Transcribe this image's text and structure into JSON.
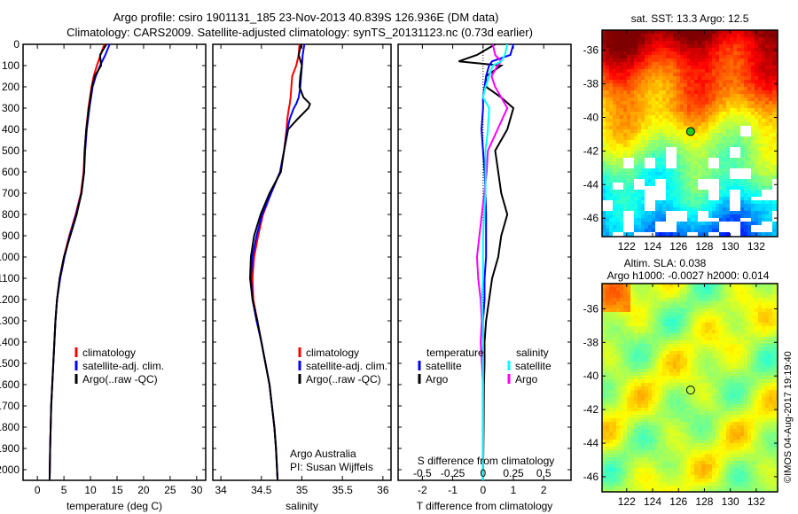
{
  "title_line1": "Argo profile: csiro 1901131_185 23-Nov-2013 40.839S 126.936E (DM data)",
  "title_line2": "Climatology: CARS2009. Satellite-adjusted climatology: synTS_20131123.nc (0.73d earlier)",
  "credit": "©IMOS 04-Aug-2017 19:19:40",
  "colors": {
    "climatology": "#ff0000",
    "satellite": "#0000ff",
    "argo": "#000000",
    "sal_satellite": "#00ffff",
    "sal_argo": "#ff00ff"
  },
  "chart_data": [
    {
      "type": "line",
      "name": "temperature",
      "xlabel": "temperature (deg C)",
      "xlim": [
        -2.7,
        31.7
      ],
      "ylim": [
        2050,
        0
      ],
      "xticks": [
        "0",
        "5",
        "10",
        "15",
        "20",
        "25",
        "30"
      ],
      "yticks": [
        "0",
        "100",
        "200",
        "300",
        "400",
        "500",
        "600",
        "700",
        "800",
        "900",
        "1000",
        "1100",
        "1200",
        "1300",
        "1400",
        "1500",
        "1600",
        "1700",
        "1800",
        "1900",
        "2000"
      ],
      "depth": [
        0,
        50,
        100,
        150,
        200,
        300,
        400,
        500,
        600,
        700,
        800,
        900,
        1000,
        1100,
        1200,
        1300,
        1400,
        1500,
        1600,
        1700,
        1800,
        1900,
        2050
      ],
      "legend": [
        "climatology",
        "satellite-adj. clim.",
        "Argo(..raw -QC)"
      ],
      "series": [
        {
          "name": "climatology",
          "values": [
            12.6,
            11.9,
            11.2,
            10.6,
            10.2,
            9.6,
            9.2,
            8.9,
            8.7,
            8.2,
            7.2,
            6.0,
            5.0,
            4.2,
            3.7,
            3.4,
            3.2,
            3.0,
            2.8,
            2.6,
            2.5,
            2.4,
            2.3
          ]
        },
        {
          "name": "satellite-adj. clim.",
          "values": [
            13.6,
            12.8,
            11.8,
            11.0,
            10.4,
            9.8,
            9.3,
            9.0,
            8.8,
            8.3,
            7.3,
            6.1,
            5.1,
            4.3,
            3.7,
            3.4,
            3.2,
            3.0,
            2.8,
            2.6,
            2.5,
            2.4,
            2.3
          ]
        },
        {
          "name": "Argo(..raw -QC)",
          "values": [
            13.0,
            11.8,
            12.0,
            10.8,
            10.3,
            9.7,
            9.2,
            8.9,
            8.8,
            8.3,
            7.4,
            6.2,
            5.0,
            4.2,
            3.7,
            3.4,
            3.2,
            3.0,
            2.8,
            2.6,
            2.5,
            2.4,
            2.3
          ]
        }
      ]
    },
    {
      "type": "line",
      "name": "salinity",
      "xlabel": "salinity",
      "xlim": [
        33.9,
        36.1
      ],
      "ylim": [
        2050,
        0
      ],
      "xticks": [
        "34",
        "34.5",
        "35",
        "35.5",
        "36"
      ],
      "depth": [
        0,
        50,
        100,
        150,
        200,
        250,
        280,
        300,
        350,
        400,
        500,
        600,
        700,
        800,
        900,
        1000,
        1100,
        1200,
        1300,
        1400,
        1500,
        1600,
        1700,
        1800,
        1900,
        2050
      ],
      "legend": [
        "climatology",
        "satellite-adj. clim.",
        "Argo(..raw -QC)"
      ],
      "annotation": [
        "Argo Australia",
        "PI: Susan Wijffels"
      ],
      "series": [
        {
          "name": "climatology",
          "values": [
            34.97,
            34.96,
            34.93,
            34.88,
            34.87,
            34.86,
            34.85,
            34.84,
            34.82,
            34.81,
            34.78,
            34.73,
            34.62,
            34.52,
            34.46,
            34.41,
            34.39,
            34.4,
            34.45,
            34.5,
            34.55,
            34.6,
            34.63,
            34.66,
            34.68,
            34.7
          ]
        },
        {
          "name": "satellite-adj. clim.",
          "values": [
            35.03,
            35.01,
            35.0,
            34.99,
            34.98,
            34.96,
            34.93,
            34.9,
            34.85,
            34.82,
            34.78,
            34.73,
            34.62,
            34.51,
            34.44,
            34.39,
            34.37,
            34.39,
            34.44,
            34.5,
            34.55,
            34.6,
            34.63,
            34.66,
            34.68,
            34.7
          ]
        },
        {
          "name": "Argo(..raw -QC)",
          "values": [
            34.99,
            34.96,
            35.0,
            34.98,
            34.97,
            35.02,
            35.1,
            35.08,
            34.95,
            34.83,
            34.78,
            34.74,
            34.6,
            34.49,
            34.41,
            34.37,
            34.36,
            34.39,
            34.45,
            34.5,
            34.55,
            34.6,
            34.63,
            34.66,
            34.68,
            34.7
          ]
        }
      ]
    },
    {
      "type": "line",
      "name": "difference",
      "xlabel": "T difference from climatology",
      "x2label": "S difference from climatology",
      "xlim": [
        -2.8,
        2.9
      ],
      "ylim": [
        2050,
        0
      ],
      "xticks": [
        "-2",
        "-1",
        "0",
        "1",
        "2"
      ],
      "x2ticks": [
        "-0.5",
        "-0.25",
        "0",
        "0.25",
        "0.5"
      ],
      "depth": [
        0,
        50,
        80,
        100,
        150,
        200,
        250,
        300,
        400,
        500,
        600,
        700,
        800,
        900,
        1000,
        1100,
        1200,
        1300,
        1400,
        1500,
        1600,
        1800,
        2050
      ],
      "legend_headers": [
        "temperature",
        "salinity"
      ],
      "legend": [
        "satellite",
        "Argo",
        "satellite",
        "Argo"
      ],
      "series": [
        {
          "name": "T satellite",
          "values": [
            1.0,
            0.9,
            0.3,
            0.2,
            0.1,
            0.05,
            0.0,
            0.0,
            -0.05,
            0.0,
            0.05,
            0.08,
            0.1,
            0.1,
            0.1,
            0.05,
            0.05,
            0.0,
            0.0,
            0.0,
            0.0,
            0.0,
            0.0
          ]
        },
        {
          "name": "T Argo",
          "values": [
            0.4,
            -0.2,
            -0.8,
            0.6,
            0.1,
            0.1,
            0.6,
            1.0,
            0.8,
            0.4,
            0.5,
            0.6,
            0.8,
            0.6,
            0.5,
            0.3,
            0.2,
            0.1,
            0.05,
            0.05,
            0.03,
            0.02,
            0.0
          ]
        },
        {
          "name": "S satellite",
          "values": [
            0.2,
            0.18,
            0.15,
            0.08,
            0.05,
            0.02,
            0.0,
            0.05,
            0.04,
            0.02,
            0.02,
            0.02,
            0.01,
            0.0,
            0.0,
            0.0,
            -0.01,
            0.0,
            0.0,
            0.0,
            0.0,
            0.0,
            0.0
          ]
        },
        {
          "name": "S Argo",
          "values": [
            0.08,
            0.1,
            0.15,
            0.12,
            0.07,
            0.1,
            0.15,
            0.2,
            0.12,
            0.04,
            0.03,
            0.01,
            -0.01,
            -0.03,
            -0.05,
            -0.04,
            -0.02,
            -0.01,
            -0.02,
            -0.01,
            0.0,
            0.0,
            0.0
          ]
        }
      ]
    },
    {
      "type": "heatmap",
      "name": "sst-map",
      "title": "sat. SST: 13.3 Argo: 12.5",
      "xlim": [
        120.1,
        133.65
      ],
      "ylim": [
        -47.1,
        -34.8
      ],
      "xticks": [
        "122",
        "124",
        "126",
        "128",
        "130",
        "132"
      ],
      "yticks": [
        "-36",
        "-38",
        "-40",
        "-42",
        "-44",
        "-46"
      ],
      "marker": {
        "lon": 126.936,
        "lat": -40.839
      }
    },
    {
      "type": "heatmap",
      "name": "sla-map",
      "title": "Altim. SLA: 0.038",
      "subtitle": "Argo h1000: -0.0027 h2000: 0.014",
      "xlim": [
        120.1,
        133.65
      ],
      "ylim": [
        -46.9,
        -34.5
      ],
      "xticks": [
        "122",
        "124",
        "126",
        "128",
        "130",
        "132"
      ],
      "yticks": [
        "-36",
        "-38",
        "-40",
        "-42",
        "-44",
        "-46"
      ],
      "marker": {
        "lon": 126.936,
        "lat": -40.839
      }
    }
  ]
}
